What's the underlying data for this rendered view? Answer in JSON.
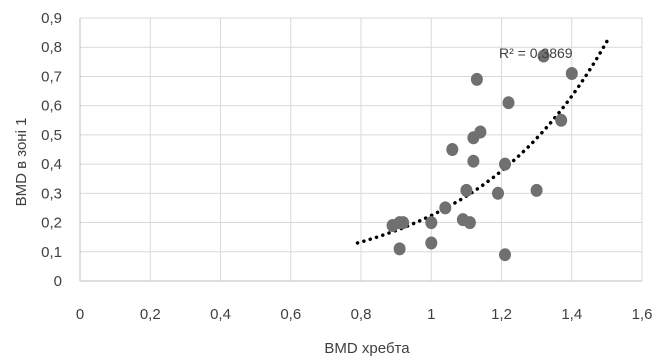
{
  "chart_data": {
    "type": "scatter",
    "xlabel": "BMD хребта",
    "ylabel": "BMD в зоні 1",
    "xlim": [
      0,
      1.6
    ],
    "ylim": [
      0,
      0.9
    ],
    "x_ticks": [
      "0",
      "0,2",
      "0,4",
      "0,6",
      "0,8",
      "1",
      "1,2",
      "1,4",
      "1,6"
    ],
    "y_ticks": [
      "0",
      "0,1",
      "0,2",
      "0,3",
      "0,4",
      "0,5",
      "0,6",
      "0,7",
      "0,8",
      "0,9"
    ],
    "grid": true,
    "series": [
      {
        "points": [
          {
            "x": 0.89,
            "y": 0.19
          },
          {
            "x": 0.91,
            "y": 0.11
          },
          {
            "x": 0.91,
            "y": 0.2
          },
          {
            "x": 0.92,
            "y": 0.2
          },
          {
            "x": 1.0,
            "y": 0.13
          },
          {
            "x": 1.0,
            "y": 0.2
          },
          {
            "x": 1.04,
            "y": 0.25
          },
          {
            "x": 1.06,
            "y": 0.45
          },
          {
            "x": 1.09,
            "y": 0.21
          },
          {
            "x": 1.1,
            "y": 0.31
          },
          {
            "x": 1.11,
            "y": 0.2
          },
          {
            "x": 1.12,
            "y": 0.49
          },
          {
            "x": 1.12,
            "y": 0.41
          },
          {
            "x": 1.13,
            "y": 0.69
          },
          {
            "x": 1.14,
            "y": 0.51
          },
          {
            "x": 1.19,
            "y": 0.3
          },
          {
            "x": 1.21,
            "y": 0.4
          },
          {
            "x": 1.21,
            "y": 0.09
          },
          {
            "x": 1.22,
            "y": 0.61
          },
          {
            "x": 1.3,
            "y": 0.31
          },
          {
            "x": 1.32,
            "y": 0.77
          },
          {
            "x": 1.37,
            "y": 0.55
          },
          {
            "x": 1.4,
            "y": 0.71
          }
        ]
      }
    ],
    "trendline": {
      "type": "exponential",
      "x_range": [
        0.79,
        1.5
      ],
      "start_y": 0.13,
      "end_y": 0.82,
      "r2_label": "R² = 0,3869"
    },
    "colors": {
      "marker": "#707070",
      "trendline": "#000000",
      "grid": "#d9d9d9",
      "text": "#404040"
    }
  }
}
